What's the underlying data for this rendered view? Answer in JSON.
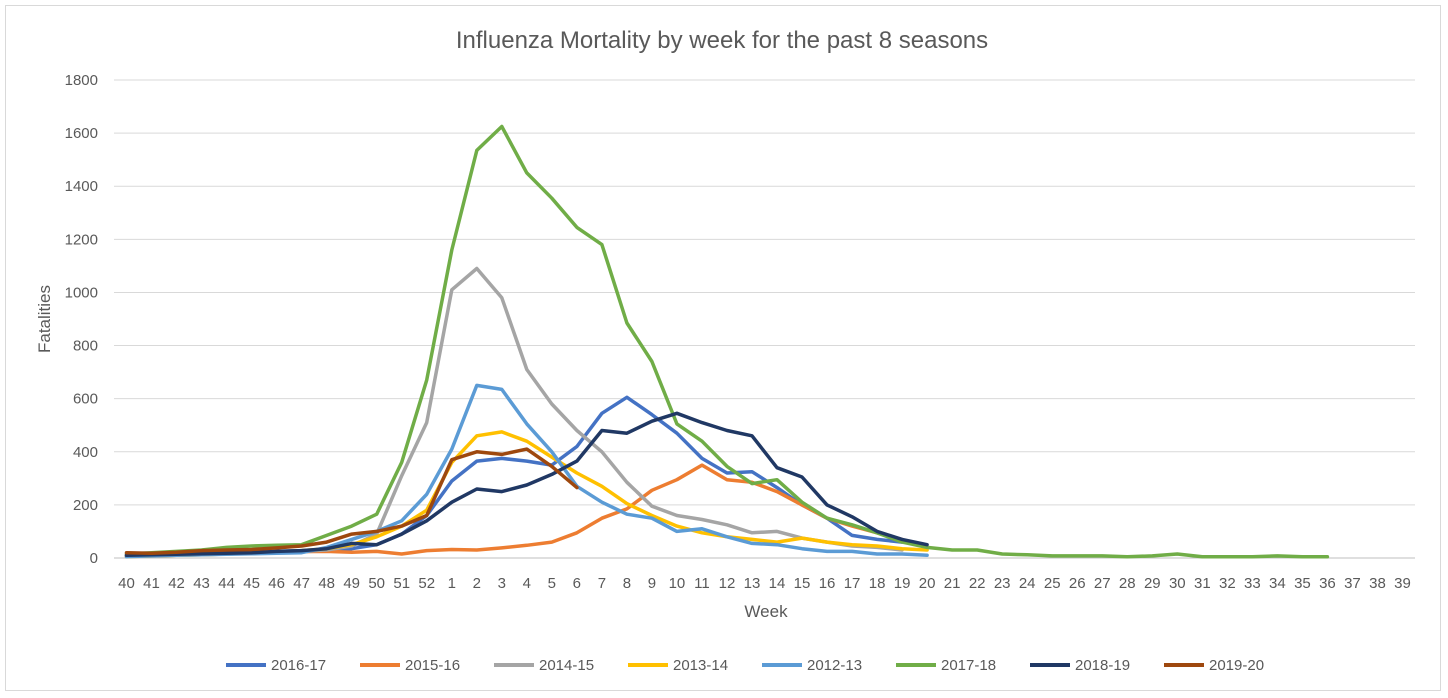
{
  "chart_data": {
    "type": "line",
    "title": "Influenza Mortality by week for the past 8 seasons",
    "xlabel": "Week",
    "ylabel": "Fatalities",
    "ylim": [
      0,
      1800
    ],
    "yticks": [
      0,
      200,
      400,
      600,
      800,
      1000,
      1200,
      1400,
      1600,
      1800
    ],
    "grid": "horizontal",
    "legend_position": "bottom",
    "categories": [
      "40",
      "41",
      "42",
      "43",
      "44",
      "45",
      "46",
      "47",
      "48",
      "49",
      "50",
      "51",
      "52",
      "1",
      "2",
      "3",
      "4",
      "5",
      "6",
      "7",
      "8",
      "9",
      "10",
      "11",
      "12",
      "13",
      "14",
      "15",
      "16",
      "17",
      "18",
      "19",
      "20",
      "21",
      "22",
      "23",
      "24",
      "25",
      "26",
      "27",
      "28",
      "29",
      "30",
      "31",
      "32",
      "33",
      "34",
      "35",
      "36",
      "37",
      "38",
      "39"
    ],
    "series": [
      {
        "name": "2016-17",
        "color": "#4472C4",
        "values": [
          10,
          12,
          15,
          18,
          20,
          22,
          25,
          28,
          30,
          35,
          50,
          90,
          160,
          290,
          365,
          375,
          365,
          350,
          420,
          545,
          605,
          540,
          470,
          375,
          320,
          325,
          265,
          200,
          150,
          85,
          70,
          60,
          null,
          null,
          null,
          null,
          null,
          null,
          null,
          null,
          null,
          null,
          null,
          null,
          null,
          null,
          null,
          null,
          null,
          null,
          null,
          null
        ]
      },
      {
        "name": "2015-16",
        "color": "#ED7D31",
        "values": [
          8,
          10,
          12,
          15,
          18,
          20,
          22,
          24,
          25,
          22,
          25,
          15,
          28,
          32,
          30,
          38,
          48,
          60,
          95,
          150,
          185,
          255,
          295,
          350,
          295,
          285,
          250,
          200,
          150,
          120,
          95,
          70,
          null,
          null,
          null,
          null,
          null,
          null,
          null,
          null,
          null,
          null,
          null,
          null,
          null,
          null,
          null,
          null,
          null,
          null,
          null,
          null
        ]
      },
      {
        "name": "2014-15",
        "color": "#A5A5A5",
        "values": [
          5,
          8,
          10,
          12,
          15,
          18,
          20,
          25,
          30,
          45,
          90,
          310,
          510,
          1010,
          1090,
          980,
          710,
          580,
          480,
          400,
          285,
          195,
          160,
          145,
          125,
          95,
          100,
          75,
          60,
          45,
          40,
          30,
          null,
          null,
          null,
          null,
          null,
          null,
          null,
          null,
          null,
          null,
          null,
          null,
          null,
          null,
          null,
          null,
          null,
          null,
          null,
          null
        ]
      },
      {
        "name": "2013-14",
        "color": "#FFC000",
        "values": [
          5,
          8,
          10,
          12,
          15,
          18,
          22,
          28,
          35,
          50,
          80,
          120,
          180,
          360,
          460,
          475,
          440,
          380,
          320,
          270,
          205,
          160,
          120,
          95,
          80,
          70,
          60,
          75,
          60,
          50,
          45,
          35,
          30,
          null,
          null,
          null,
          null,
          null,
          null,
          null,
          null,
          null,
          null,
          null,
          null,
          null,
          null,
          null,
          null,
          null,
          null,
          null
        ]
      },
      {
        "name": "2012-13",
        "color": "#5B9BD5",
        "values": [
          5,
          8,
          10,
          12,
          14,
          16,
          18,
          20,
          40,
          70,
          100,
          140,
          240,
          410,
          650,
          635,
          505,
          400,
          270,
          210,
          165,
          150,
          100,
          110,
          80,
          55,
          50,
          35,
          25,
          25,
          15,
          15,
          10,
          null,
          null,
          null,
          null,
          null,
          null,
          null,
          null,
          null,
          null,
          null,
          null,
          null,
          null,
          null,
          null,
          null,
          null,
          null
        ]
      },
      {
        "name": "2017-18",
        "color": "#70AD47",
        "values": [
          15,
          20,
          25,
          30,
          40,
          45,
          48,
          50,
          85,
          120,
          165,
          360,
          670,
          1160,
          1535,
          1625,
          1450,
          1355,
          1245,
          1180,
          885,
          740,
          505,
          440,
          345,
          280,
          295,
          210,
          150,
          125,
          95,
          60,
          40,
          30,
          30,
          15,
          12,
          8,
          8,
          8,
          5,
          8,
          15,
          5,
          5,
          5,
          8,
          5,
          5,
          null,
          null,
          null
        ]
      },
      {
        "name": "2018-19",
        "color": "#203864",
        "values": [
          10,
          12,
          14,
          16,
          18,
          20,
          25,
          28,
          35,
          55,
          50,
          90,
          140,
          210,
          260,
          250,
          275,
          315,
          365,
          480,
          470,
          515,
          545,
          510,
          480,
          460,
          340,
          305,
          200,
          155,
          100,
          70,
          50,
          null,
          null,
          null,
          null,
          null,
          null,
          null,
          null,
          null,
          null,
          null,
          null,
          null,
          null,
          null,
          null,
          null,
          null,
          null
        ]
      },
      {
        "name": "2019-20",
        "color": "#9E480E",
        "values": [
          20,
          18,
          22,
          28,
          30,
          32,
          38,
          45,
          60,
          90,
          100,
          120,
          160,
          370,
          400,
          390,
          410,
          345,
          265,
          null,
          null,
          null,
          null,
          null,
          null,
          null,
          null,
          null,
          null,
          null,
          null,
          null,
          null,
          null,
          null,
          null,
          null,
          null,
          null,
          null,
          null,
          null,
          null,
          null,
          null,
          null,
          null,
          null,
          null,
          null,
          null,
          null
        ]
      }
    ]
  }
}
